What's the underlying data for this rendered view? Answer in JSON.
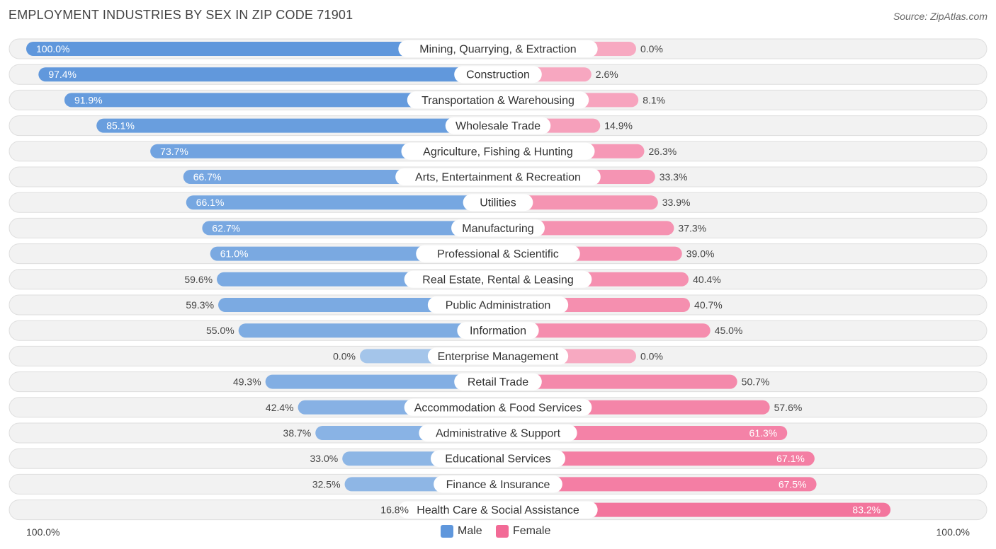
{
  "header": {
    "title": "EMPLOYMENT INDUSTRIES BY SEX IN ZIP CODE 71901",
    "source": "Source: ZipAtlas.com"
  },
  "axis": {
    "left_label": "100.0%",
    "right_label": "100.0%"
  },
  "legend": {
    "male_label": "Male",
    "female_label": "Female"
  },
  "colors": {
    "male_strong": "#5f97dc",
    "male_light": "#a4c5ea",
    "female_strong": "#f26a96",
    "female_light": "#f7a9c1",
    "row_bg": "#f2f2f2",
    "row_border": "#dedede"
  },
  "chart_data": {
    "type": "bar",
    "orientation": "horizontal-diverging",
    "title": "EMPLOYMENT INDUSTRIES BY SEX IN ZIP CODE 71901",
    "xlim": [
      -100,
      100
    ],
    "series": [
      {
        "name": "Male",
        "values": [
          100.0,
          97.4,
          91.9,
          85.1,
          73.7,
          66.7,
          66.1,
          62.7,
          61.0,
          59.6,
          59.3,
          55.0,
          0.0,
          49.3,
          42.4,
          38.7,
          33.0,
          32.5,
          16.8
        ]
      },
      {
        "name": "Female",
        "values": [
          0.0,
          2.6,
          8.1,
          14.9,
          26.3,
          33.3,
          33.9,
          37.3,
          39.0,
          40.4,
          40.7,
          45.0,
          0.0,
          50.7,
          57.6,
          61.3,
          67.1,
          67.5,
          83.2
        ]
      }
    ],
    "categories": [
      "Mining, Quarrying, & Extraction",
      "Construction",
      "Transportation & Warehousing",
      "Wholesale Trade",
      "Agriculture, Fishing & Hunting",
      "Arts, Entertainment & Recreation",
      "Utilities",
      "Manufacturing",
      "Professional & Scientific",
      "Real Estate, Rental & Leasing",
      "Public Administration",
      "Information",
      "Enterprise Management",
      "Retail Trade",
      "Accommodation & Food Services",
      "Administrative & Support",
      "Educational Services",
      "Finance & Insurance",
      "Health Care & Social Assistance"
    ],
    "male_labels": [
      "100.0%",
      "97.4%",
      "91.9%",
      "85.1%",
      "73.7%",
      "66.7%",
      "66.1%",
      "62.7%",
      "61.0%",
      "59.6%",
      "59.3%",
      "55.0%",
      "0.0%",
      "49.3%",
      "42.4%",
      "38.7%",
      "33.0%",
      "32.5%",
      "16.8%"
    ],
    "female_labels": [
      "0.0%",
      "2.6%",
      "8.1%",
      "14.9%",
      "26.3%",
      "33.3%",
      "33.9%",
      "37.3%",
      "39.0%",
      "40.4%",
      "40.7%",
      "45.0%",
      "0.0%",
      "50.7%",
      "57.6%",
      "61.3%",
      "67.1%",
      "67.5%",
      "83.2%"
    ],
    "legend_position": "bottom-center"
  }
}
